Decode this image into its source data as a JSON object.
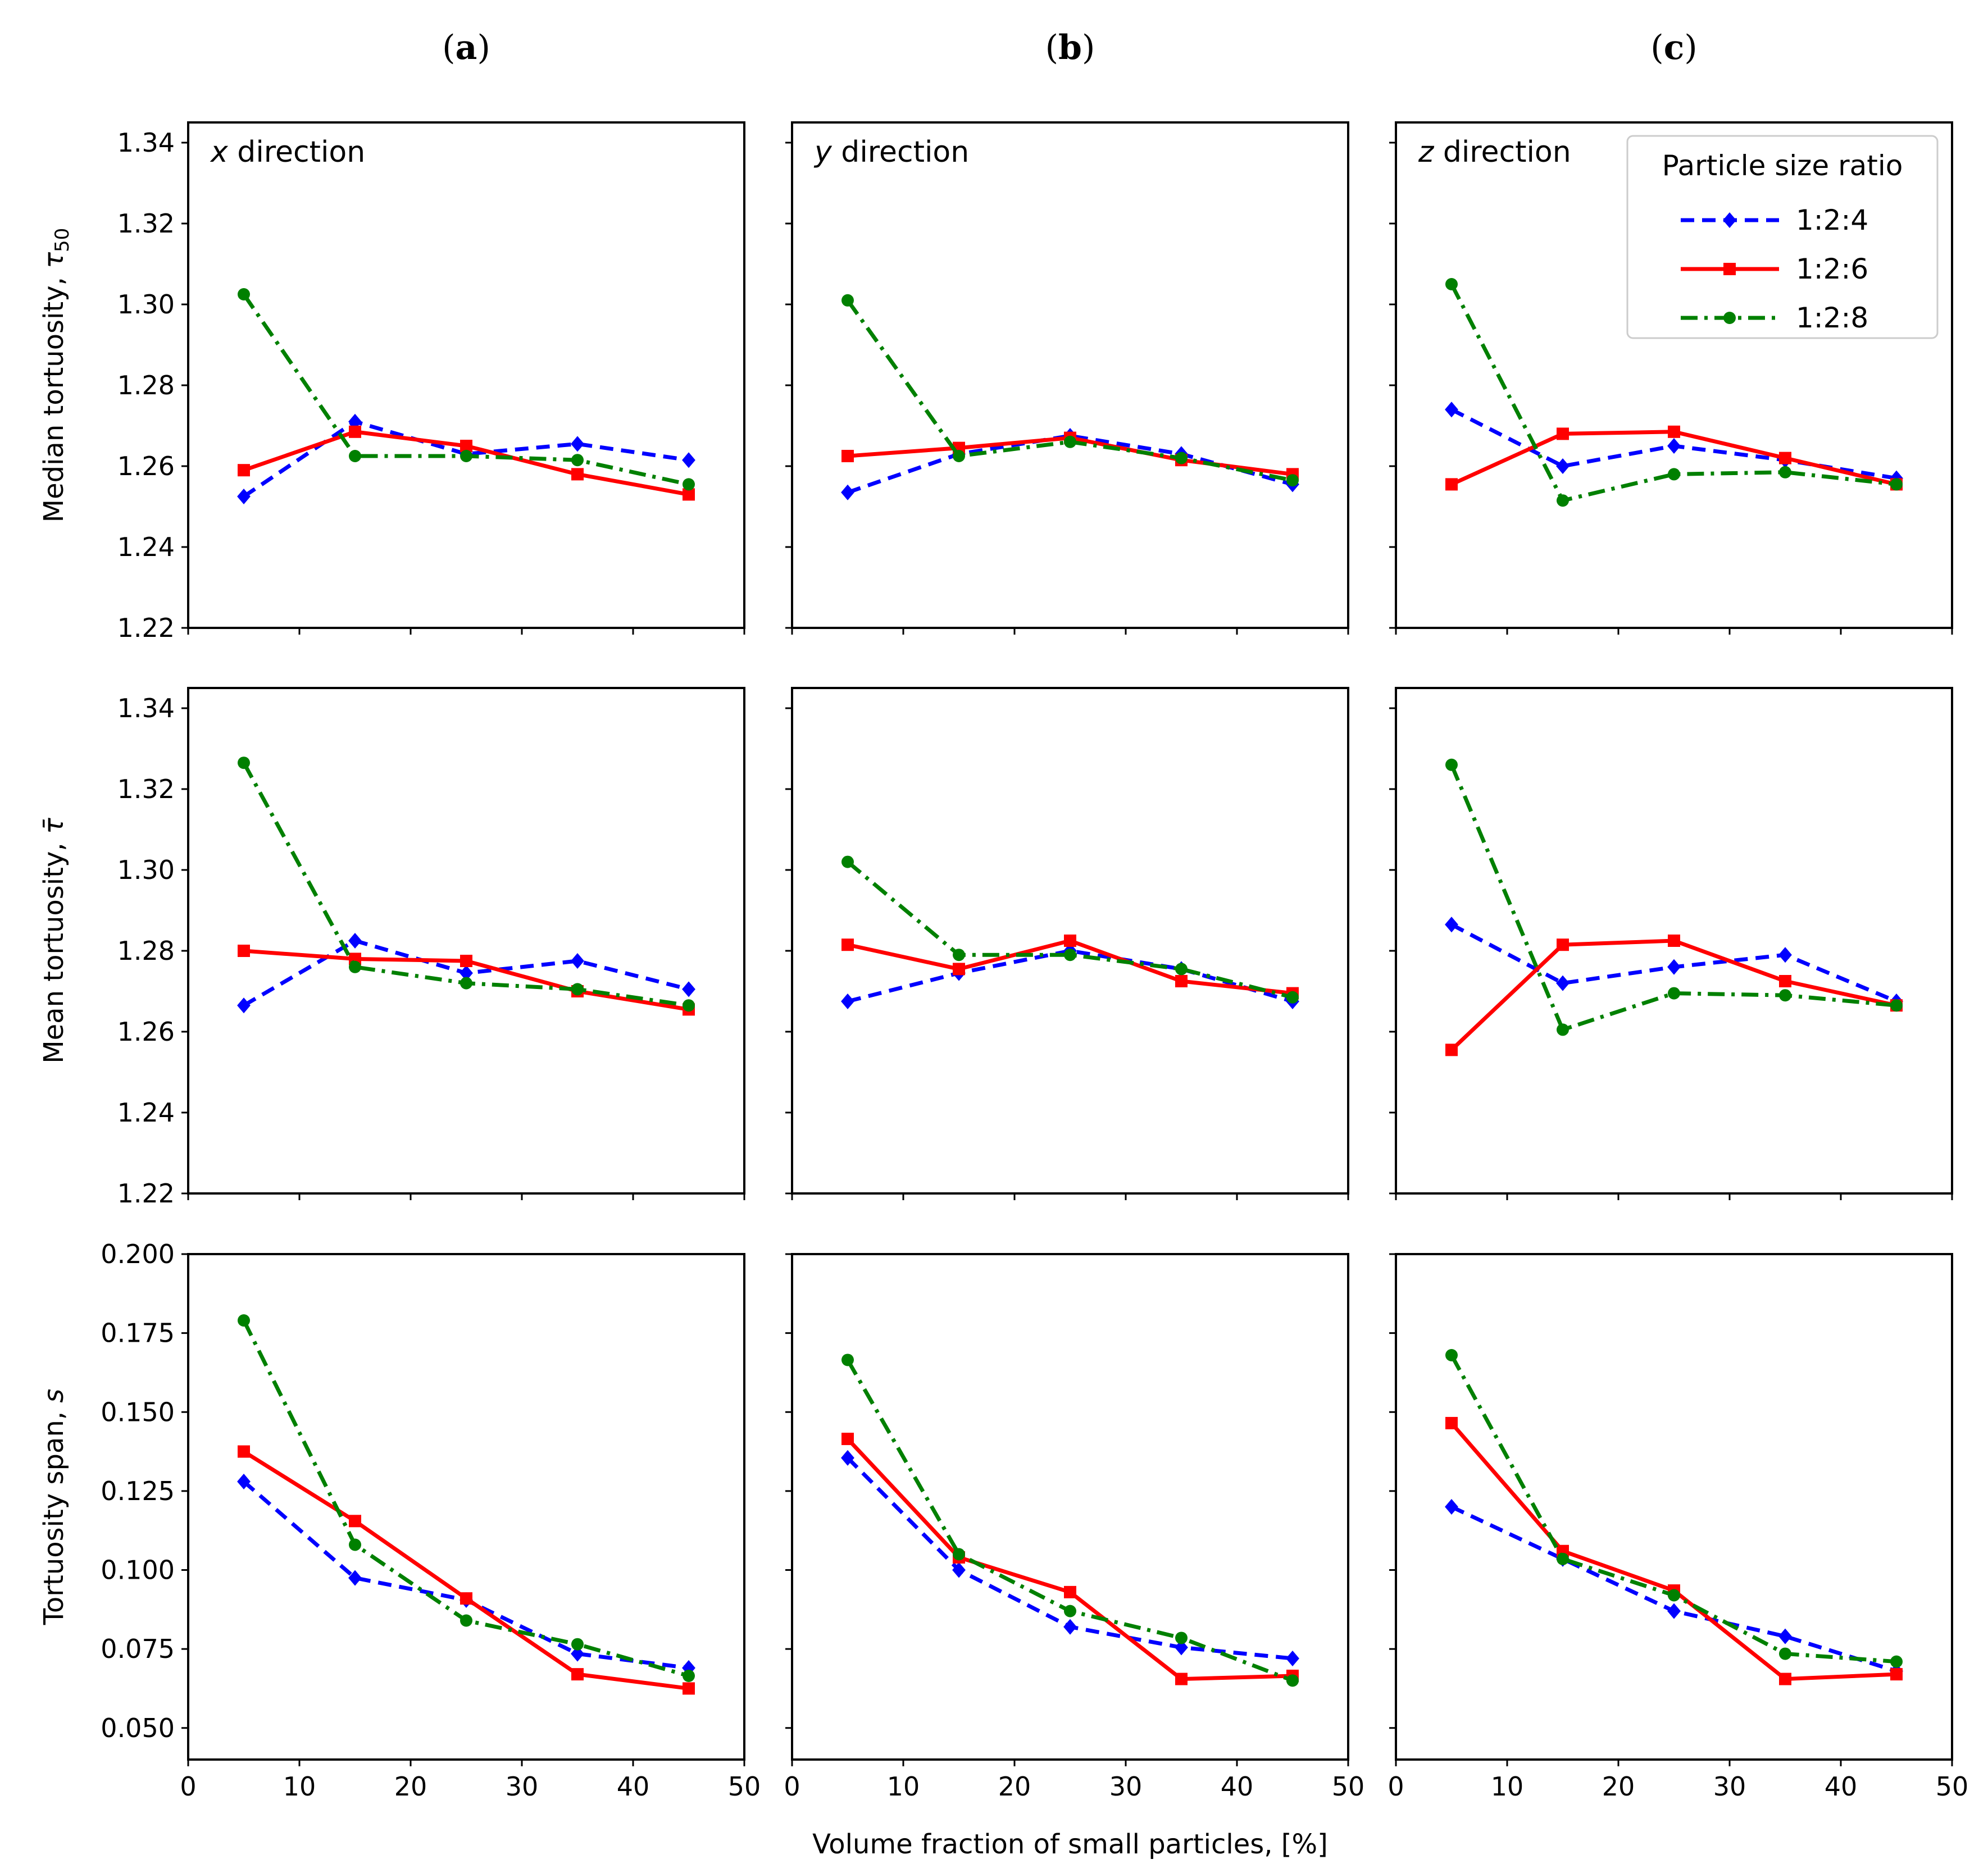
{
  "figure": {
    "col_titles": [
      "(a)",
      "(b)",
      "(c)"
    ],
    "col_title_letters": [
      "a",
      "b",
      "c"
    ],
    "xlabel": "Volume fraction of small particles, [%]",
    "direction_labels": [
      {
        "var": "x",
        "rest": " direction"
      },
      {
        "var": "y",
        "rest": " direction"
      },
      {
        "var": "z",
        "rest": " direction"
      }
    ],
    "row_ylabels": [
      {
        "text": "Median tortuosity, ",
        "symbol": "τ",
        "sub": "50"
      },
      {
        "text": "Mean tortuosity, ",
        "symbol": "τ̄",
        "sub": ""
      },
      {
        "text": "Tortuosity span, ",
        "symbol": "s",
        "sub": ""
      }
    ],
    "legend": {
      "title": "Particle size ratio",
      "entries": [
        "1:2:4",
        "1:2:6",
        "1:2:8"
      ]
    },
    "series_styles": [
      {
        "name": "1:2:4",
        "color": "#0000ff",
        "dash": "24,14",
        "marker": "diamond"
      },
      {
        "name": "1:2:6",
        "color": "#ff0000",
        "dash": "",
        "marker": "square"
      },
      {
        "name": "1:2:8",
        "color": "#008000",
        "dash": "30,12,6,12",
        "marker": "circle"
      }
    ]
  },
  "chart_data": [
    {
      "type": "line",
      "title": "x direction",
      "row": 0,
      "col": 0,
      "xlabel": "",
      "ylabel": "Median tortuosity, τ50",
      "xlim": [
        0,
        50
      ],
      "ylim": [
        1.22,
        1.345
      ],
      "xticks": [
        0,
        10,
        20,
        30,
        40,
        50
      ],
      "yticks": [
        "1.22",
        "1.24",
        "1.26",
        "1.28",
        "1.30",
        "1.32",
        "1.34"
      ],
      "x": [
        5,
        15,
        25,
        35,
        45
      ],
      "series": [
        {
          "name": "1:2:4",
          "values": [
            1.2525,
            1.271,
            1.263,
            1.2655,
            1.2615
          ]
        },
        {
          "name": "1:2:6",
          "values": [
            1.259,
            1.2685,
            1.265,
            1.258,
            1.253
          ]
        },
        {
          "name": "1:2:8",
          "values": [
            1.3025,
            1.2625,
            1.2625,
            1.2615,
            1.2555
          ]
        }
      ]
    },
    {
      "type": "line",
      "title": "y direction",
      "row": 0,
      "col": 1,
      "xlabel": "",
      "ylabel": "",
      "xlim": [
        0,
        50
      ],
      "ylim": [
        1.22,
        1.345
      ],
      "xticks": [
        0,
        10,
        20,
        30,
        40,
        50
      ],
      "yticks": [
        "1.22",
        "1.24",
        "1.26",
        "1.28",
        "1.30",
        "1.32",
        "1.34"
      ],
      "x": [
        5,
        15,
        25,
        35,
        45
      ],
      "series": [
        {
          "name": "1:2:4",
          "values": [
            1.2535,
            1.263,
            1.2675,
            1.263,
            1.2555
          ]
        },
        {
          "name": "1:2:6",
          "values": [
            1.2625,
            1.2645,
            1.267,
            1.2615,
            1.258
          ]
        },
        {
          "name": "1:2:8",
          "values": [
            1.301,
            1.2625,
            1.266,
            1.262,
            1.2565
          ]
        }
      ]
    },
    {
      "type": "line",
      "title": "z direction",
      "row": 0,
      "col": 2,
      "xlabel": "",
      "ylabel": "",
      "xlim": [
        0,
        50
      ],
      "ylim": [
        1.22,
        1.345
      ],
      "xticks": [
        0,
        10,
        20,
        30,
        40,
        50
      ],
      "yticks": [
        "1.22",
        "1.24",
        "1.26",
        "1.28",
        "1.30",
        "1.32",
        "1.34"
      ],
      "x": [
        5,
        15,
        25,
        35,
        45
      ],
      "series": [
        {
          "name": "1:2:4",
          "values": [
            1.274,
            1.26,
            1.265,
            1.2615,
            1.257
          ]
        },
        {
          "name": "1:2:6",
          "values": [
            1.2555,
            1.268,
            1.2685,
            1.262,
            1.2555
          ]
        },
        {
          "name": "1:2:8",
          "values": [
            1.305,
            1.2515,
            1.258,
            1.2585,
            1.2555
          ]
        }
      ]
    },
    {
      "type": "line",
      "title": "",
      "row": 1,
      "col": 0,
      "xlabel": "",
      "ylabel": "Mean tortuosity, τ̄",
      "xlim": [
        0,
        50
      ],
      "ylim": [
        1.22,
        1.345
      ],
      "xticks": [
        0,
        10,
        20,
        30,
        40,
        50
      ],
      "yticks": [
        "1.22",
        "1.24",
        "1.26",
        "1.28",
        "1.30",
        "1.32",
        "1.34"
      ],
      "x": [
        5,
        15,
        25,
        35,
        45
      ],
      "series": [
        {
          "name": "1:2:4",
          "values": [
            1.2665,
            1.2825,
            1.2745,
            1.2775,
            1.2705
          ]
        },
        {
          "name": "1:2:6",
          "values": [
            1.28,
            1.278,
            1.2775,
            1.27,
            1.2655
          ]
        },
        {
          "name": "1:2:8",
          "values": [
            1.3265,
            1.276,
            1.272,
            1.2705,
            1.2665
          ]
        }
      ]
    },
    {
      "type": "line",
      "title": "",
      "row": 1,
      "col": 1,
      "xlabel": "",
      "ylabel": "",
      "xlim": [
        0,
        50
      ],
      "ylim": [
        1.22,
        1.345
      ],
      "xticks": [
        0,
        10,
        20,
        30,
        40,
        50
      ],
      "yticks": [
        "1.22",
        "1.24",
        "1.26",
        "1.28",
        "1.30",
        "1.32",
        "1.34"
      ],
      "x": [
        5,
        15,
        25,
        35,
        45
      ],
      "series": [
        {
          "name": "1:2:4",
          "values": [
            1.2675,
            1.2745,
            1.28,
            1.2755,
            1.2675
          ]
        },
        {
          "name": "1:2:6",
          "values": [
            1.2815,
            1.2755,
            1.2825,
            1.2725,
            1.2695
          ]
        },
        {
          "name": "1:2:8",
          "values": [
            1.302,
            1.279,
            1.279,
            1.2755,
            1.2685
          ]
        }
      ]
    },
    {
      "type": "line",
      "title": "",
      "row": 1,
      "col": 2,
      "xlabel": "",
      "ylabel": "",
      "xlim": [
        0,
        50
      ],
      "ylim": [
        1.22,
        1.345
      ],
      "xticks": [
        0,
        10,
        20,
        30,
        40,
        50
      ],
      "yticks": [
        "1.22",
        "1.24",
        "1.26",
        "1.28",
        "1.30",
        "1.32",
        "1.34"
      ],
      "x": [
        5,
        15,
        25,
        35,
        45
      ],
      "series": [
        {
          "name": "1:2:4",
          "values": [
            1.2865,
            1.272,
            1.276,
            1.279,
            1.2675
          ]
        },
        {
          "name": "1:2:6",
          "values": [
            1.2555,
            1.2815,
            1.2825,
            1.2725,
            1.2665
          ]
        },
        {
          "name": "1:2:8",
          "values": [
            1.326,
            1.2605,
            1.2695,
            1.269,
            1.2665
          ]
        }
      ]
    },
    {
      "type": "line",
      "title": "",
      "row": 2,
      "col": 0,
      "xlabel": "",
      "ylabel": "Tortuosity span, s",
      "xlim": [
        0,
        50
      ],
      "ylim": [
        0.04,
        0.2
      ],
      "xticks": [
        0,
        10,
        20,
        30,
        40,
        50
      ],
      "yticks": [
        "0.050",
        "0.075",
        "0.100",
        "0.125",
        "0.150",
        "0.175",
        "0.200"
      ],
      "x": [
        5,
        15,
        25,
        35,
        45
      ],
      "series": [
        {
          "name": "1:2:4",
          "values": [
            0.128,
            0.0975,
            0.0905,
            0.0735,
            0.069
          ]
        },
        {
          "name": "1:2:6",
          "values": [
            0.1375,
            0.1155,
            0.091,
            0.067,
            0.0625
          ]
        },
        {
          "name": "1:2:8",
          "values": [
            0.179,
            0.108,
            0.084,
            0.0765,
            0.0665
          ]
        }
      ]
    },
    {
      "type": "line",
      "title": "",
      "row": 2,
      "col": 1,
      "xlabel": "",
      "ylabel": "",
      "xlim": [
        0,
        50
      ],
      "ylim": [
        0.04,
        0.2
      ],
      "xticks": [
        0,
        10,
        20,
        30,
        40,
        50
      ],
      "yticks": [
        "0.050",
        "0.075",
        "0.100",
        "0.125",
        "0.150",
        "0.175",
        "0.200"
      ],
      "x": [
        5,
        15,
        25,
        35,
        45
      ],
      "series": [
        {
          "name": "1:2:4",
          "values": [
            0.1355,
            0.1,
            0.082,
            0.0755,
            0.072
          ]
        },
        {
          "name": "1:2:6",
          "values": [
            0.1415,
            0.104,
            0.093,
            0.0655,
            0.0665
          ]
        },
        {
          "name": "1:2:8",
          "values": [
            0.1665,
            0.105,
            0.087,
            0.0785,
            0.065
          ]
        }
      ]
    },
    {
      "type": "line",
      "title": "",
      "row": 2,
      "col": 2,
      "xlabel": "",
      "ylabel": "",
      "xlim": [
        0,
        50
      ],
      "ylim": [
        0.04,
        0.2
      ],
      "xticks": [
        0,
        10,
        20,
        30,
        40,
        50
      ],
      "yticks": [
        "0.050",
        "0.075",
        "0.100",
        "0.125",
        "0.150",
        "0.175",
        "0.200"
      ],
      "x": [
        5,
        15,
        25,
        35,
        45
      ],
      "series": [
        {
          "name": "1:2:4",
          "values": [
            0.12,
            0.1035,
            0.087,
            0.079,
            0.068
          ]
        },
        {
          "name": "1:2:6",
          "values": [
            0.1465,
            0.106,
            0.0935,
            0.0655,
            0.067
          ]
        },
        {
          "name": "1:2:8",
          "values": [
            0.168,
            0.1035,
            0.092,
            0.0735,
            0.071
          ]
        }
      ]
    }
  ]
}
